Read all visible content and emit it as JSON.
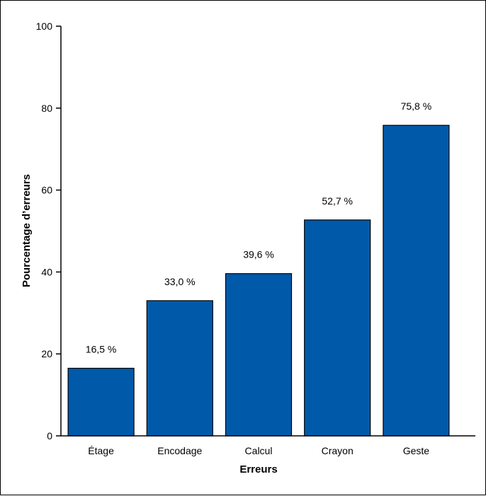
{
  "chart_data": {
    "type": "bar",
    "categories": [
      "Étage",
      "Encodage",
      "Calcul",
      "Crayon",
      "Geste"
    ],
    "values": [
      16.5,
      33.0,
      39.6,
      52.7,
      75.8
    ],
    "data_labels": [
      "16,5 %",
      "33,0 %",
      "39,6 %",
      "52,7 %",
      "75,8 %"
    ],
    "xlabel": "Erreurs",
    "ylabel": "Pourcentage d’erreurs",
    "ylim": [
      0,
      100
    ],
    "yticks": [
      0,
      20,
      40,
      60,
      80,
      100
    ],
    "bar_color": "#005aaa",
    "grid": false
  }
}
